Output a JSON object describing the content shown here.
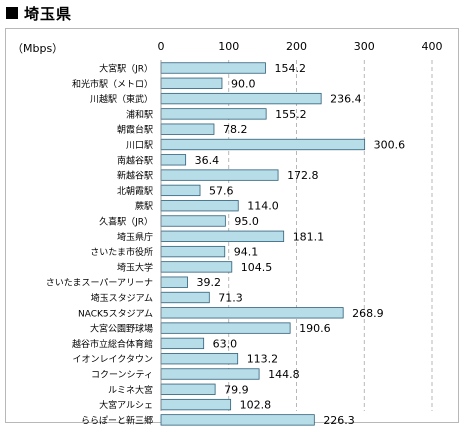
{
  "header": {
    "title": "埼玉県"
  },
  "chart_data": {
    "type": "bar",
    "orientation": "horizontal",
    "title": "埼玉県",
    "unit_label": "（Mbps）",
    "xlim": [
      0,
      400
    ],
    "x_ticks": [
      "0",
      "100",
      "200",
      "300",
      "400"
    ],
    "grid": true,
    "bar_color": "#b7dde8",
    "bar_border": "#2e5f7a",
    "categories": [
      "大宮駅（JR）",
      "和光市駅（メトロ）",
      "川越駅（東武）",
      "浦和駅",
      "朝霞台駅",
      "川口駅",
      "南越谷駅",
      "新越谷駅",
      "北朝霞駅",
      "蕨駅",
      "久喜駅（JR）",
      "埼玉県庁",
      "さいたま市役所",
      "埼玉大学",
      "さいたまスーパーアリーナ",
      "埼玉スタジアム",
      "NACK5スタジアム",
      "大宮公園野球場",
      "越谷市立総合体育館",
      "イオンレイクタウン",
      "コクーンシティ",
      "ルミネ大宮",
      "大宮アルシェ",
      "ららぽーと新三郷"
    ],
    "values": [
      154.2,
      90.0,
      236.4,
      155.2,
      78.2,
      300.6,
      36.4,
      172.8,
      57.6,
      114.0,
      95.0,
      181.1,
      94.1,
      104.5,
      39.2,
      71.3,
      268.9,
      190.6,
      63.0,
      113.2,
      144.8,
      79.9,
      102.8,
      226.3
    ],
    "value_labels": [
      "154.2",
      "90.0",
      "236.4",
      "155.2",
      "78.2",
      "300.6",
      "36.4",
      "172.8",
      "57.6",
      "114.0",
      "95.0",
      "181.1",
      "94.1",
      "104.5",
      "39.2",
      "71.3",
      "268.9",
      "190.6",
      "63.0",
      "113.2",
      "144.8",
      "79.9",
      "102.8",
      "226.3"
    ]
  }
}
